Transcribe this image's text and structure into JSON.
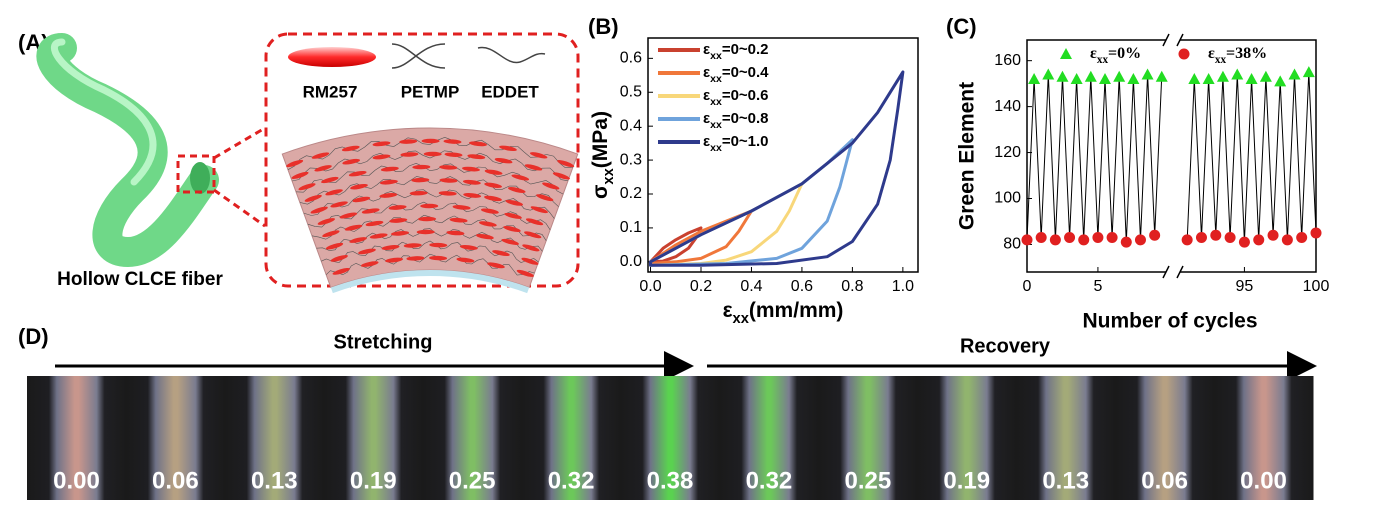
{
  "panel_labels": [
    "(A)",
    "(B)",
    "(C)",
    "(D)"
  ],
  "schematic": {
    "molecules": [
      "RM257",
      "PETMP",
      "EDDET"
    ],
    "caption": "Hollow CLCE fiber"
  },
  "chart_data": [
    {
      "type": "line",
      "x_label": "εxx(mm/mm)",
      "y_label": "σxx(MPa)",
      "xlim": [
        -0.01,
        1.06
      ],
      "ylim": [
        -0.03,
        0.66
      ],
      "xticks": [
        {
          "value": 0,
          "label": "0.0"
        },
        0.2,
        0.4,
        0.6,
        0.8,
        {
          "value": 1,
          "label": "1.0"
        }
      ],
      "yticks": [
        {
          "value": 0,
          "label": "0.0"
        },
        0.1,
        0.2,
        0.3,
        0.4,
        0.5,
        0.6
      ],
      "legend": "upper left",
      "series": [
        {
          "name": "εxx=0~0.2",
          "color": "#c9412f",
          "x": [
            0,
            0.05,
            0.1,
            0.15,
            0.2,
            0.18,
            0.15,
            0.1,
            0.05,
            0
          ],
          "values": [
            0,
            0.04,
            0.065,
            0.085,
            0.1,
            0.07,
            0.04,
            0.015,
            0.002,
            0
          ]
        },
        {
          "name": "εxx=0~0.4",
          "color": "#f0773a",
          "x": [
            0,
            0.1,
            0.2,
            0.3,
            0.4,
            0.35,
            0.3,
            0.2,
            0.1,
            0
          ],
          "values": [
            0,
            0.05,
            0.09,
            0.12,
            0.15,
            0.09,
            0.045,
            0.01,
            0,
            -0.005
          ]
        },
        {
          "name": "εxx=0~0.6",
          "color": "#f8d77a",
          "x": [
            0,
            0.2,
            0.4,
            0.5,
            0.6,
            0.55,
            0.5,
            0.4,
            0.3,
            0.2,
            0
          ],
          "values": [
            0,
            0.08,
            0.15,
            0.19,
            0.23,
            0.15,
            0.09,
            0.03,
            0.005,
            -0.005,
            -0.01
          ]
        },
        {
          "name": "εxx=0~0.8",
          "color": "#6fa3dc",
          "x": [
            0,
            0.2,
            0.4,
            0.6,
            0.7,
            0.8,
            0.75,
            0.7,
            0.6,
            0.5,
            0.3,
            0
          ],
          "values": [
            0,
            0.08,
            0.15,
            0.23,
            0.29,
            0.36,
            0.22,
            0.12,
            0.04,
            0.01,
            -0.005,
            -0.01
          ]
        },
        {
          "name": "εxx=0~1.0",
          "color": "#2e3a8c",
          "x": [
            0,
            0.2,
            0.4,
            0.6,
            0.8,
            0.9,
            1,
            0.98,
            0.95,
            0.9,
            0.8,
            0.7,
            0.5,
            0.2,
            0
          ],
          "values": [
            0,
            0.08,
            0.15,
            0.23,
            0.35,
            0.44,
            0.56,
            0.45,
            0.3,
            0.17,
            0.06,
            0.015,
            -0.005,
            -0.01,
            -0.01
          ]
        }
      ]
    },
    {
      "type": "scatter",
      "x_label": "Number of cycles",
      "y_label": "Green Element",
      "xlim": [
        0,
        100
      ],
      "x_break": [
        9.8,
        90.5
      ],
      "ylim": [
        68,
        169
      ],
      "xticks": [
        0,
        5,
        95,
        100
      ],
      "yticks": [
        80,
        100,
        120,
        140,
        160
      ],
      "series": [
        {
          "name": "εxx=0%",
          "color": "#22dd22",
          "marker": "triangle",
          "x": [
            0.5,
            1.5,
            2.5,
            3.5,
            4.5,
            5.5,
            6.5,
            7.5,
            8.5,
            9.5,
            91.5,
            92.5,
            93.5,
            94.5,
            95.5,
            96.5,
            97.5,
            98.5,
            99.5
          ],
          "values": [
            152,
            154,
            153,
            152,
            153,
            152,
            153,
            152,
            154,
            153,
            152,
            152,
            153,
            154,
            152,
            153,
            151,
            154,
            155
          ]
        },
        {
          "name": "εxx=38%",
          "color": "#e02020",
          "marker": "circle",
          "x": [
            0,
            1,
            2,
            3,
            4,
            5,
            6,
            7,
            8,
            9,
            91,
            92,
            93,
            94,
            95,
            96,
            97,
            98,
            99,
            100
          ],
          "values": [
            82,
            83,
            82,
            83,
            82,
            83,
            83,
            81,
            82,
            84,
            82,
            83,
            84,
            83,
            81,
            82,
            84,
            82,
            83,
            85
          ]
        }
      ]
    }
  ],
  "sequence": {
    "stretching": "Stretching",
    "recovery": "Recovery",
    "strains": [
      "0.00",
      "0.06",
      "0.13",
      "0.19",
      "0.25",
      "0.32",
      "0.38",
      "0.32",
      "0.25",
      "0.19",
      "0.13",
      "0.06",
      "0.00"
    ]
  }
}
